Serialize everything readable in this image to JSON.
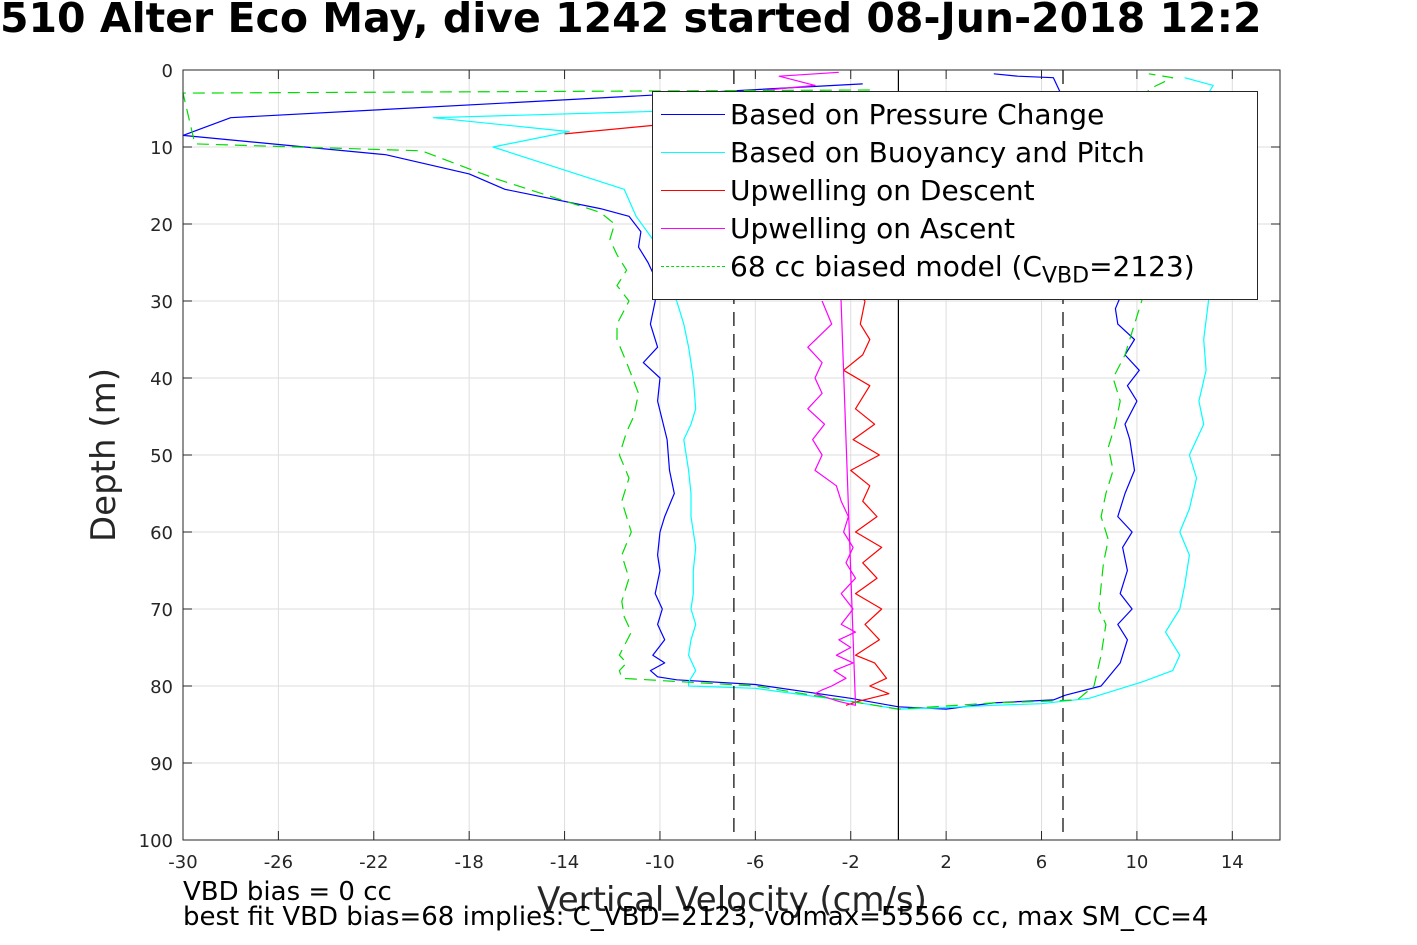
{
  "chart_data": {
    "type": "line",
    "title": "510 Alter Eco May, dive 1242 started 08-Jun-2018 12:2",
    "xlabel": "Vertical Velocity (cm/s)",
    "ylabel": "Depth (m)",
    "xlim": [
      -30,
      16
    ],
    "ylim": [
      0,
      100
    ],
    "y_reversed": true,
    "grid": true,
    "xticks": [
      -30,
      -26,
      -22,
      -18,
      -14,
      -10,
      -6,
      -2,
      2,
      6,
      10,
      14
    ],
    "yticks": [
      0,
      10,
      20,
      30,
      40,
      50,
      60,
      70,
      80,
      90,
      100
    ],
    "legend_position": "top-right",
    "series": [
      {
        "name": "Based on Pressure Change",
        "color": "#0000ff",
        "style": "solid",
        "x": [
          -1.5,
          -28,
          -30,
          -21.5,
          -18,
          -16.5,
          -12.5,
          -11.3,
          -10.8,
          -10.9,
          -10.5,
          -10.2,
          -10.2,
          -10.4,
          -10.1,
          -10.7,
          -10.0,
          -10.1,
          -9.7,
          -9.6,
          -9.4,
          -9.8,
          -10.0,
          -10.1,
          -10.0,
          -10.2,
          -9.9,
          -10.1,
          -9.8,
          -10.3,
          -9.8,
          -10.4,
          -10.1,
          -9.3,
          -6,
          -2,
          0,
          2,
          4,
          6.5,
          7,
          8.5,
          9.3,
          9.6,
          9.2,
          9.8,
          9.3,
          9.6,
          9.4,
          9.8,
          9.2,
          9.5,
          9.9,
          9.7,
          9.5,
          10,
          9.6,
          10.1,
          9.5,
          9.9,
          9.2,
          9.1,
          9.5,
          8.8,
          8.2,
          9.3,
          9.8,
          9.5,
          8.0,
          6.8,
          6.5,
          5.0,
          4.0
        ],
        "y": [
          1.8,
          6.2,
          8.5,
          11,
          13.5,
          15.5,
          18,
          19,
          21,
          23,
          25,
          27,
          30,
          33,
          36,
          38,
          40,
          43,
          48,
          52,
          55,
          58,
          60,
          63,
          65,
          68,
          70,
          72,
          74,
          76,
          77,
          78,
          78.8,
          79.2,
          79.8,
          81.6,
          82.7,
          83,
          82.2,
          81.8,
          81.2,
          80,
          77,
          74,
          72,
          70,
          68,
          65,
          62,
          60,
          58,
          55,
          52,
          48,
          46,
          43,
          41,
          39,
          37,
          35,
          33,
          31,
          28,
          25,
          22,
          19,
          17,
          15,
          7,
          3,
          1,
          0.8,
          0.5
        ]
      },
      {
        "name": "Based on Buoyancy and Pitch",
        "color": "#00ffff",
        "style": "solid",
        "x": [
          -0.5,
          -19.5,
          -13.8,
          -17,
          -11.5,
          -11.0,
          -10.3,
          -10.0,
          -9.3,
          -9.0,
          -8.8,
          -8.6,
          -8.5,
          -8.7,
          -9.0,
          -8.8,
          -8.7,
          -8.7,
          -8.5,
          -8.6,
          -8.6,
          -8.7,
          -8.5,
          -8.7,
          -8.8,
          -8.5,
          -8.8,
          -8.8,
          -6,
          -2,
          0,
          2,
          4,
          6,
          8,
          10.2,
          11.5,
          11.8,
          11.2,
          11.8,
          12.0,
          12.2,
          11.8,
          12.2,
          12.5,
          12.2,
          12.8,
          12.6,
          12.9,
          12.8,
          13.0,
          13.2,
          13.0,
          13.3,
          12.9,
          12.6,
          13.2,
          12.0
        ],
        "y": [
          4.5,
          6.2,
          8,
          10,
          15.5,
          19,
          22,
          26,
          30,
          33,
          36,
          40,
          44,
          46,
          48,
          52,
          55,
          58,
          62,
          65,
          68,
          70,
          72,
          74,
          76,
          78,
          79.5,
          80,
          80.3,
          82,
          83,
          82.8,
          82.5,
          82.3,
          81.6,
          79.5,
          78,
          76,
          73,
          70,
          67,
          63,
          60,
          57,
          53,
          50,
          46,
          43,
          39,
          35,
          30,
          25,
          20,
          15,
          10,
          5,
          2,
          1
        ]
      },
      {
        "name": "Upwelling on Descent",
        "color": "#ff0000",
        "style": "solid",
        "x": [
          -14,
          -8,
          -1.4,
          -1.6,
          -1.2,
          -1.5,
          -2.3,
          -1.2,
          -1.8,
          -1.0,
          -1.9,
          -0.8,
          -2.0,
          -1.2,
          -1.5,
          -0.9,
          -1.8,
          -0.7,
          -1.5,
          -0.9,
          -1.8,
          -0.7,
          -1.4,
          -0.8,
          -1.8,
          -1.0,
          -0.5,
          -1.2,
          -0.4,
          -1.7,
          -2.2
        ],
        "y": [
          8.3,
          6.5,
          30,
          33,
          35,
          37,
          39,
          41,
          44,
          46,
          48,
          50,
          52,
          54,
          56,
          58,
          60,
          62,
          64,
          66,
          68,
          70,
          72,
          74,
          76,
          77,
          79,
          80,
          81,
          82,
          82.5
        ]
      },
      {
        "name": "Upwelling on Ascent",
        "color": "#ff00ff",
        "style": "solid",
        "x": [
          -3.2,
          -2.8,
          -3.8,
          -3.2,
          -3.5,
          -3.2,
          -3.8,
          -3.1,
          -3.6,
          -3.2,
          -3.5,
          -2.6,
          -2.4,
          -2.1,
          -2.3,
          -1.9,
          -2.2,
          -1.8,
          -2.4,
          -1.9,
          -2.4,
          -1.8,
          -2.5,
          -2.0,
          -2.6,
          -1.9,
          -2.7,
          -2.2,
          -2.8,
          -3.2,
          -3.5,
          -2.5,
          -1.8,
          -2.6,
          -4.0,
          -3.6,
          -4.2,
          -5.5,
          -3.5,
          -5.0,
          -2.5
        ],
        "y": [
          30,
          33,
          36,
          38,
          40,
          42,
          44,
          46,
          48,
          50,
          52,
          54,
          56,
          58,
          60,
          62,
          64,
          66,
          68,
          70,
          72,
          73,
          74,
          75,
          76,
          77,
          78,
          79,
          80,
          80.5,
          81,
          82,
          82.5,
          13,
          10,
          8,
          5,
          2.6,
          2,
          0.8,
          0.3
        ]
      },
      {
        "name": "68 cc biased model (C_VBD=2123)",
        "color": "#00dd00",
        "style": "dashed",
        "x": [
          -1.2,
          -30,
          -29.5,
          -20,
          -17,
          -14.5,
          -12.5,
          -11.9,
          -12.1,
          -11.8,
          -11.4,
          -11.8,
          -11.3,
          -11.8,
          -11.8,
          -11.4,
          -10.9,
          -11.1,
          -11.4,
          -11.7,
          -11.3,
          -11.6,
          -11.2,
          -11.6,
          -11.3,
          -11.6,
          -11.5,
          -11.2,
          -11.7,
          -11.4,
          -11.7,
          -11.6,
          -6,
          -2,
          0,
          2,
          4,
          6,
          7.5,
          8.2,
          8.5,
          8.7,
          8.4,
          8.5,
          8.6,
          8.8,
          8.5,
          8.7,
          9.0,
          8.8,
          9.1,
          9.3,
          9.0,
          9.5,
          9.8,
          10.2,
          10.5,
          10.8,
          10.4,
          10.6,
          10.8,
          10.3,
          10.5,
          11.5,
          10.5
        ],
        "y": [
          2.6,
          3.0,
          9.6,
          10.5,
          14,
          16.5,
          18.5,
          20,
          22,
          24,
          26,
          28,
          30,
          33,
          35,
          38,
          42,
          45,
          47,
          50,
          53,
          56,
          60,
          63,
          66,
          69,
          71,
          73,
          76,
          77,
          78,
          79,
          80,
          82,
          83,
          82.6,
          82.2,
          82.0,
          81.8,
          80,
          76,
          72,
          70,
          67,
          64,
          61,
          58,
          55,
          52,
          49,
          46,
          43,
          40,
          37,
          34,
          30,
          25,
          20,
          15,
          10,
          6,
          4,
          2.5,
          1,
          0.5
        ]
      },
      {
        "name": "",
        "color": "#000000",
        "style": "dashed",
        "x": [
          -6.9,
          -6.9
        ],
        "y": [
          0,
          100
        ]
      },
      {
        "name": "",
        "color": "#000000",
        "style": "dashed",
        "x": [
          6.9,
          6.9
        ],
        "y": [
          0,
          100
        ]
      },
      {
        "name": "",
        "color": "#000000",
        "style": "solid",
        "x": [
          0,
          0
        ],
        "y": [
          0,
          100
        ]
      }
    ]
  },
  "legend": {
    "items": [
      {
        "label": "Based on Pressure Change",
        "color": "#0000ff",
        "style": "solid"
      },
      {
        "label": "Based on Buoyancy and Pitch",
        "color": "#00ffff",
        "style": "solid"
      },
      {
        "label": "Upwelling on Descent",
        "color": "#ff0000",
        "style": "solid"
      },
      {
        "label": "Upwelling on Ascent",
        "color": "#ff00ff",
        "style": "solid"
      },
      {
        "label_main": "68 cc biased model (C",
        "label_sub": "VBD",
        "label_tail": "=2123)",
        "color": "#00dd00",
        "style": "dashed"
      }
    ]
  },
  "notes": {
    "line1": "VBD bias = 0 cc",
    "line2": "best fit VBD bias=68 implies: C_VBD=2123, volmax=55566 cc, max SM_CC=4"
  }
}
